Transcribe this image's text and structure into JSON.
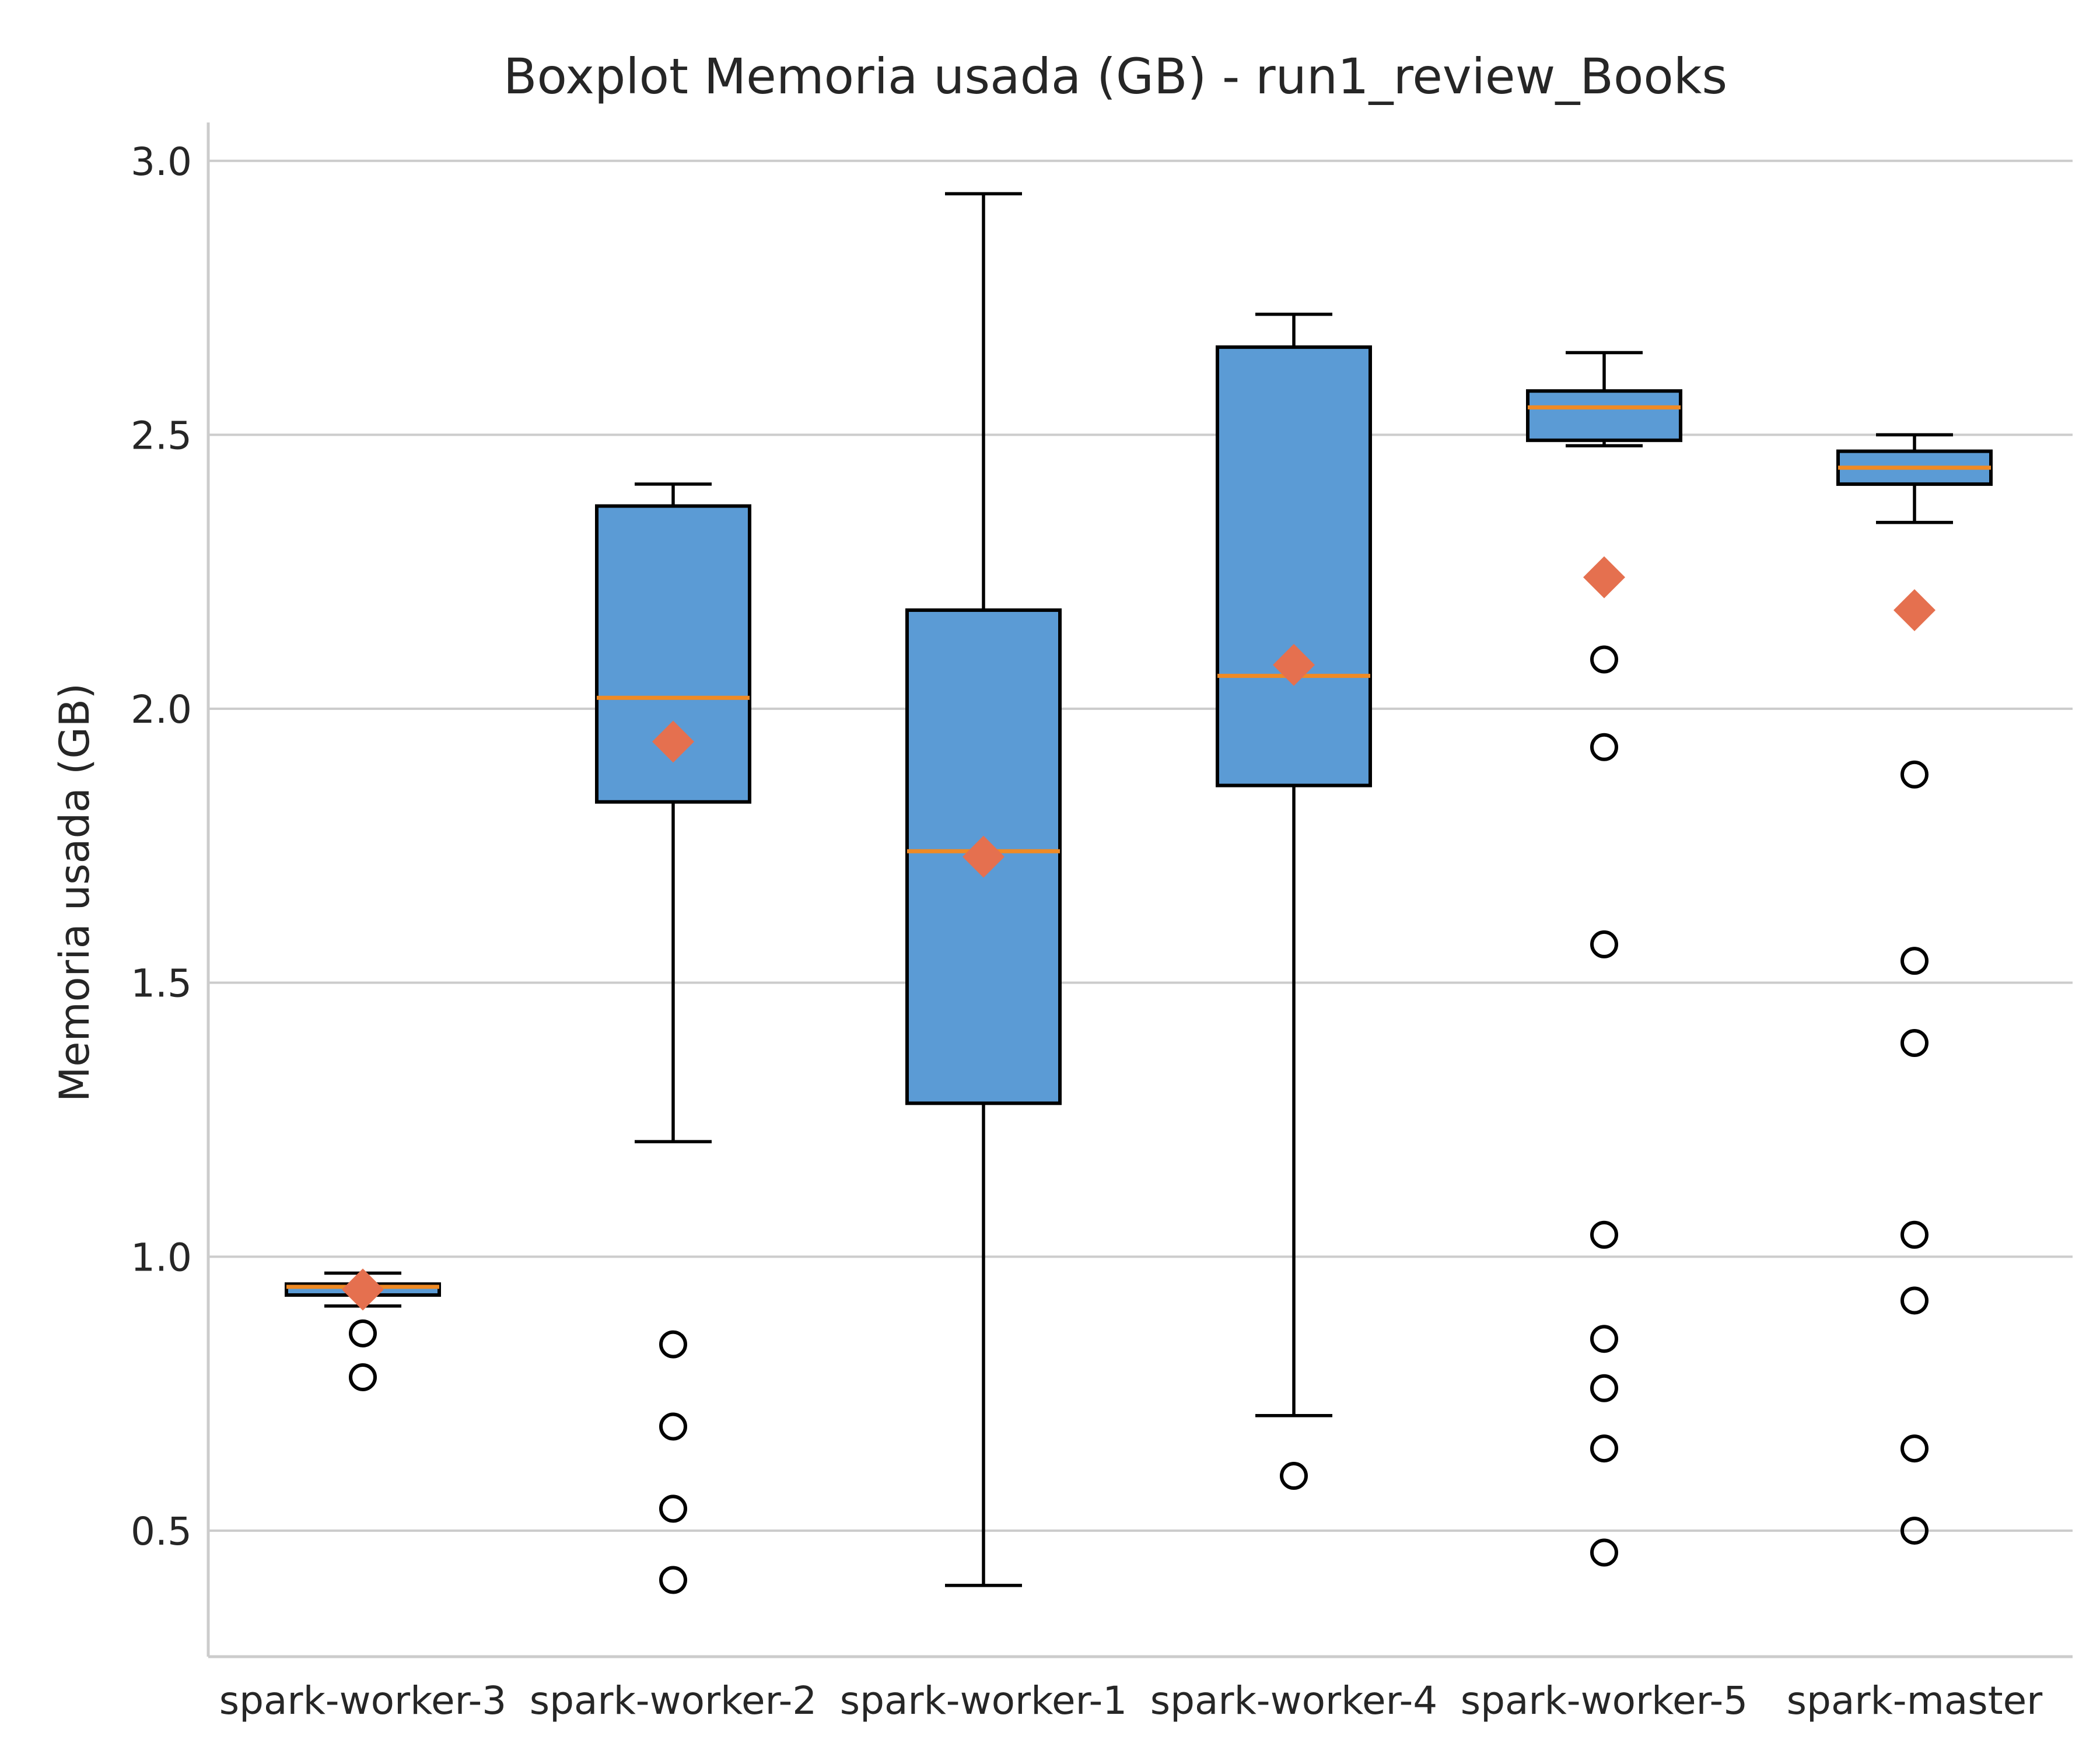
{
  "chart_data": {
    "type": "box",
    "title": "Boxplot Memoria usada (GB) - run1_review_Books",
    "xlabel": "",
    "ylabel": "Memoria usada (GB)",
    "ylim": [
      0.27,
      3.07
    ],
    "yticks": [
      "0.5",
      "1.0",
      "1.5",
      "2.0",
      "2.5",
      "3.0"
    ],
    "grid": "horizontal",
    "colors": {
      "box_fill": "#5b9bd5",
      "box_edge": "#000000",
      "median": "#f08a24",
      "mean_marker": "#e5704f",
      "grid": "#cccccc"
    },
    "categories": [
      "spark-worker-3",
      "spark-worker-2",
      "spark-worker-1",
      "spark-worker-4",
      "spark-worker-5",
      "spark-master"
    ],
    "boxes": [
      {
        "whislo": 0.91,
        "q1": 0.93,
        "med": 0.945,
        "q3": 0.95,
        "whishi": 0.97,
        "mean": 0.94,
        "fliers": [
          0.86,
          0.78
        ]
      },
      {
        "whislo": 1.21,
        "q1": 1.83,
        "med": 2.02,
        "q3": 2.37,
        "whishi": 2.41,
        "mean": 1.94,
        "fliers": [
          0.84,
          0.69,
          0.54,
          0.41
        ]
      },
      {
        "whislo": 0.4,
        "q1": 1.28,
        "med": 1.74,
        "q3": 2.18,
        "whishi": 2.94,
        "mean": 1.73,
        "fliers": []
      },
      {
        "whislo": 0.71,
        "q1": 1.86,
        "med": 2.06,
        "q3": 2.66,
        "whishi": 2.72,
        "mean": 2.08,
        "fliers": [
          0.6
        ]
      },
      {
        "whislo": 2.48,
        "q1": 2.49,
        "med": 2.55,
        "q3": 2.58,
        "whishi": 2.65,
        "mean": 2.24,
        "fliers": [
          2.09,
          1.93,
          1.57,
          1.04,
          0.85,
          0.76,
          0.65,
          0.46
        ]
      },
      {
        "whislo": 2.34,
        "q1": 2.41,
        "med": 2.44,
        "q3": 2.47,
        "whishi": 2.5,
        "mean": 2.18,
        "fliers": [
          1.88,
          1.54,
          1.39,
          1.04,
          0.92,
          0.65,
          0.5
        ]
      }
    ]
  }
}
